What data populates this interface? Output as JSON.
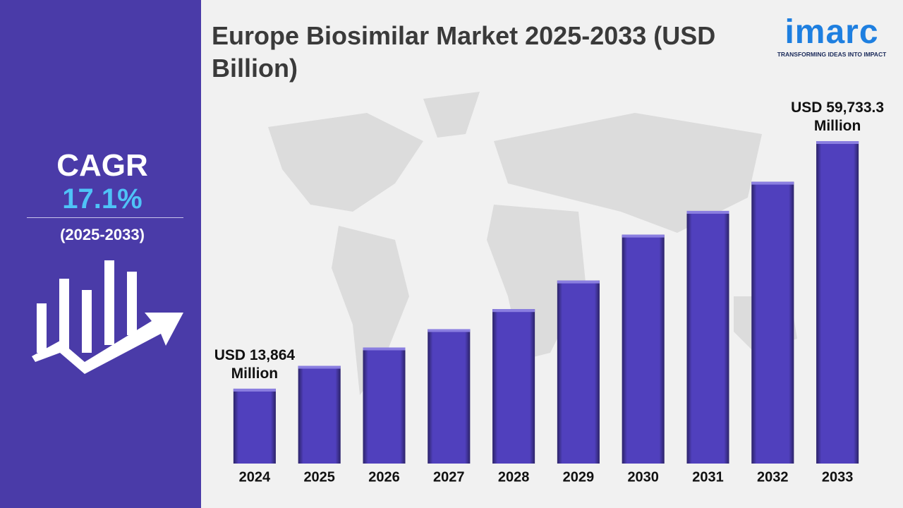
{
  "sidebar": {
    "cagr_label": "CAGR",
    "cagr_value": "17.1%",
    "period": "(2025-2033)"
  },
  "logo": {
    "name": "imarc",
    "tagline": "TRANSFORMING IDEAS INTO IMPACT"
  },
  "chart_data": {
    "type": "bar",
    "title": "Europe Biosimilar Market 2025-2033 (USD Billion)",
    "categories": [
      "2024",
      "2025",
      "2026",
      "2027",
      "2028",
      "2029",
      "2030",
      "2031",
      "2032",
      "2033"
    ],
    "values": [
      13864,
      18100,
      21500,
      24900,
      28600,
      33900,
      42400,
      46800,
      52200,
      59733.3
    ],
    "value_labels": [
      "USD 13,864 Million",
      null,
      null,
      null,
      null,
      null,
      null,
      null,
      null,
      "USD 59,733.3 Million"
    ],
    "color": "#5040bd"
  }
}
